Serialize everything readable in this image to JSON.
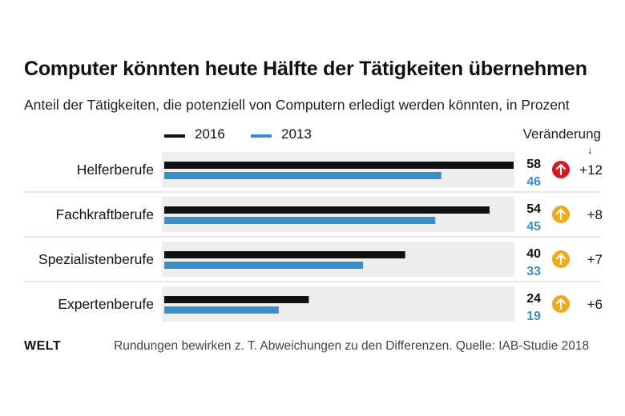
{
  "title": "Computer könnten heute Hälfte der Tätigkeiten übernehmen",
  "subtitle": "Anteil der Tätigkeiten, die potenziell von Computern erledigt werden könnten, in Prozent",
  "change_header": "Veränderung",
  "colors": {
    "series_2016": "#111111",
    "series_2013": "#3a8fc8",
    "track": "#eeeeee",
    "arrow_red": "#d8161b",
    "arrow_orange": "#f0a81c"
  },
  "chart_data": {
    "type": "bar",
    "orientation": "horizontal",
    "categories": [
      "Helferberufe",
      "Fachkraftberufe",
      "Spezialistenberufe",
      "Expertenberufe"
    ],
    "series": [
      {
        "name": "2016",
        "values": [
          58,
          54,
          40,
          24
        ]
      },
      {
        "name": "2013",
        "values": [
          46,
          45,
          33,
          19
        ]
      }
    ],
    "changes": [
      "+12",
      "+8",
      "+7",
      "+6"
    ],
    "change_icons": [
      "arrow-up-red",
      "arrow-up-orange",
      "arrow-up-orange",
      "arrow-up-orange"
    ],
    "xlim": [
      0,
      58
    ],
    "grid": false,
    "legend_position": "top-left"
  },
  "footer": {
    "logo": "WELT",
    "note": "Rundungen bewirken z. T. Abweichungen zu den Differenzen. Quelle: IAB-Studie 2018"
  }
}
